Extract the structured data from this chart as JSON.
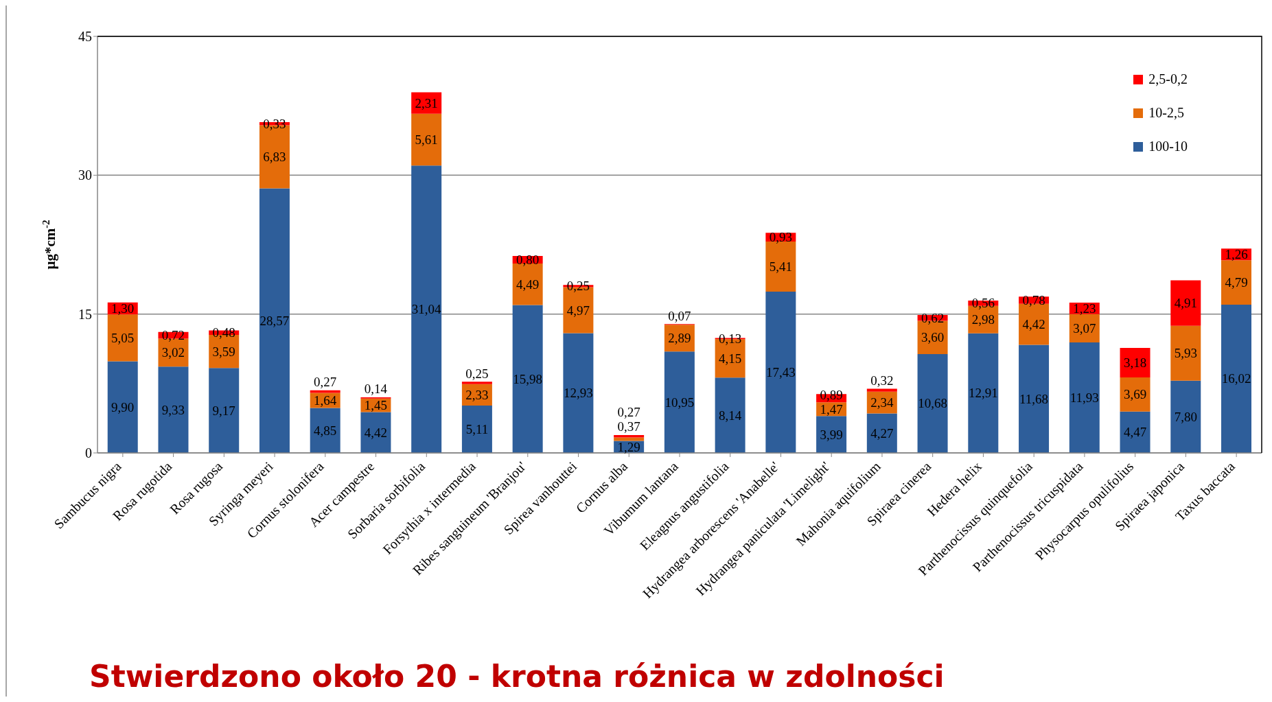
{
  "chart_data": {
    "type": "bar",
    "stacked": true,
    "ylabel": "µg*cm$^{-2}$",
    "annotations": [
      "Stwierdzono około 20 - krotna różnica w zdolności"
    ],
    "categories": [
      "Sambucus nigra",
      "Rosa rugotida",
      "Rosa rugosa",
      "Syringa meyeri",
      "Cornus stolonifera",
      "Acer campestre",
      "Sorbaria sorbifolia",
      "Forsythia x intermedia",
      "Ribes sanguineum 'Branjou'",
      "Spirea vanhouttei",
      "Cornus alba",
      "Vibumum lantana",
      "Eleagnus angustifolia",
      "Hydrangea arborescens 'Anabelle'",
      "Hydrangea paniculata 'Limelight'",
      "Mahonia aquifolium",
      "Spiraea cinerea",
      "Hedera helix",
      "Parthenocissus quinquefolia",
      "Parthenocissus tricuspidata",
      "Physocarpus opulifolius",
      "Spiraea japonica",
      "Taxus baccata"
    ],
    "series": [
      {
        "name": "100-10",
        "color": "#2e5e9a",
        "values": [
          9.9,
          9.33,
          9.17,
          28.57,
          4.85,
          4.42,
          31.04,
          5.11,
          15.98,
          12.93,
          1.29,
          10.95,
          8.14,
          17.43,
          3.99,
          4.27,
          10.68,
          12.91,
          11.68,
          11.93,
          4.47,
          7.8,
          16.02
        ],
        "value_labels": [
          "9,90",
          "9,33",
          "9,17",
          "28,57",
          "4,85",
          "4,42",
          "31,04",
          "5,11",
          "15,98",
          "12,93",
          "1,29",
          "10,95",
          "8,14",
          "17,43",
          "3,99",
          "4,27",
          "10,68",
          "12,91",
          "11,68",
          "11,93",
          "4,47",
          "7,80",
          "16,02"
        ]
      },
      {
        "name": "10-2,5",
        "color": "#e46c0a",
        "values": [
          5.05,
          3.02,
          3.59,
          6.83,
          1.64,
          1.45,
          5.61,
          2.33,
          4.49,
          4.97,
          0.37,
          2.89,
          4.15,
          5.41,
          1.47,
          2.34,
          3.6,
          2.98,
          4.42,
          3.07,
          3.69,
          5.93,
          4.79
        ],
        "value_labels": [
          "5,05",
          "3,02",
          "3,59",
          "6,83",
          "1,64",
          "1,45",
          "5,61",
          "2,33",
          "4,49",
          "4,97",
          "0,37",
          "2,89",
          "4,15",
          "5,41",
          "1,47",
          "2,34",
          "3,60",
          "2,98",
          "4,42",
          "3,07",
          "3,69",
          "5,93",
          "4,79"
        ]
      },
      {
        "name": "2,5-0,2",
        "color": "#ff0000",
        "values": [
          1.3,
          0.72,
          0.48,
          0.33,
          0.27,
          0.14,
          2.31,
          0.25,
          0.8,
          0.25,
          0.27,
          0.07,
          0.13,
          0.93,
          0.89,
          0.32,
          0.62,
          0.56,
          0.78,
          1.23,
          3.18,
          4.91,
          1.26
        ],
        "value_labels": [
          "1,30",
          "0,72",
          "0,48",
          "0,33",
          "0,27",
          "0,14",
          "2,31",
          "0,25",
          "0,80",
          "0,25",
          "0,27",
          "0,07",
          "0,13",
          "0,93",
          "0,89",
          "0,32",
          "0,62",
          "0,56",
          "0,78",
          "1,23",
          "3,18",
          "4,91",
          "1,26"
        ]
      }
    ],
    "ylim": [
      0,
      45
    ],
    "yticks": [
      0,
      15,
      30,
      45
    ],
    "grid": "y",
    "legend": "top right"
  }
}
